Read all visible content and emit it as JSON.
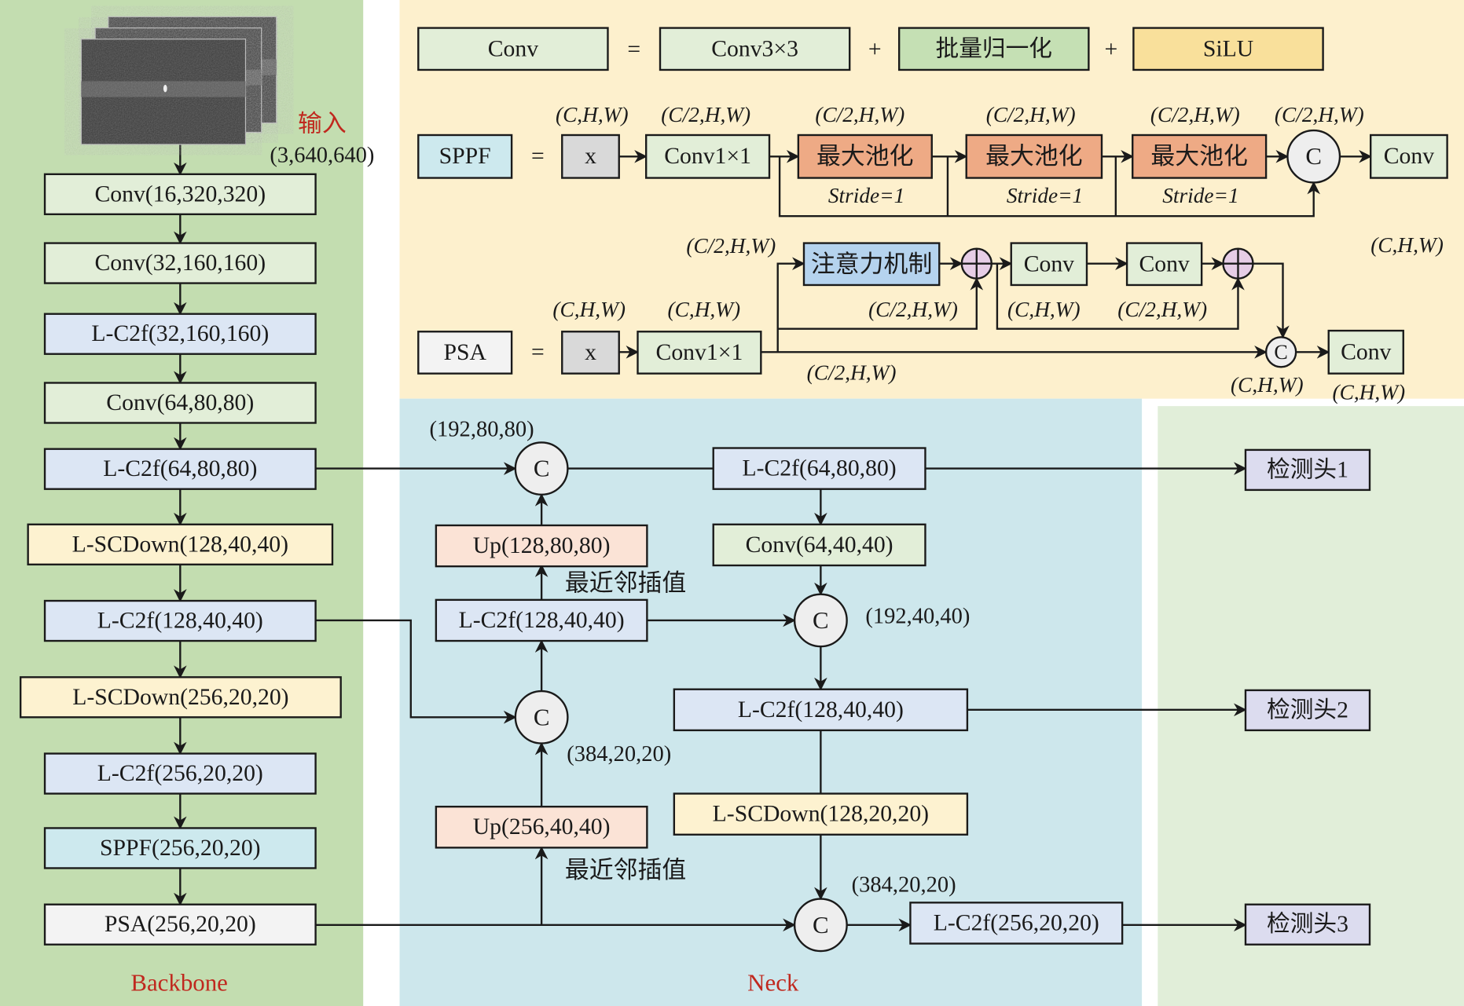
{
  "colors": {
    "backbone_bg": "#c3ddb0",
    "neck_bg": "#cde7ec",
    "module_bg": "#fdf0cd",
    "head_bg": "#e1eed9",
    "conv": "#e2eed8",
    "lc2f": "#dce6f4",
    "scdown": "#fdf2d0",
    "sppf": "#cde9ee",
    "psa": "#f3f3f3",
    "up": "#fbe3d6",
    "maxpool": "#eeaa85",
    "attention": "#b5d3ee",
    "add": "#e6cde6",
    "concat": "#eeeeee",
    "bn": "#c5e0b4",
    "silu": "#f9e09b",
    "x": "#d9d9d9",
    "head": "#dcdcef",
    "red_label": "#c0281e"
  },
  "backbone": {
    "title": "Backbone",
    "input_label": "输入",
    "input_shape": "(3,640,640)",
    "layers": [
      "Conv(16,320,320)",
      "Conv(32,160,160)",
      "L-C2f(32,160,160)",
      "Conv(64,80,80)",
      "L-C2f(64,80,80)",
      "L-SCDown(128,40,40)",
      "L-C2f(128,40,40)",
      "L-SCDown(256,20,20)",
      "L-C2f(256,20,20)",
      "SPPF(256,20,20)",
      "PSA(256,20,20)"
    ]
  },
  "neck": {
    "title": "Neck",
    "concat": "C",
    "up1": "Up(128,80,80)",
    "up2": "Up(256,40,40)",
    "nearest1": "最近邻插值",
    "nearest2": "最近邻插值",
    "lc2f_128_a": "L-C2f(128,40,40)",
    "lc2f_64": "L-C2f(64,80,80)",
    "conv_64": "Conv(64,40,40)",
    "lc2f_128_b": "L-C2f(128,40,40)",
    "scdown_128": "L-SCDown(128,20,20)",
    "lc2f_256": "L-C2f(256,20,20)",
    "shape_c1": "(192,80,80)",
    "shape_c2": "(384,20,20)",
    "shape_c3": "(192,40,40)",
    "shape_c4": "(384,20,20)"
  },
  "heads": [
    "检测头1",
    "检测头2",
    "检测头3"
  ],
  "modules": {
    "conv_def": {
      "name": "Conv",
      "eq": "=",
      "plus": "+",
      "parts": [
        "Conv3×3",
        "批量归一化",
        "SiLU"
      ]
    },
    "sppf_def": {
      "name": "SPPF",
      "eq": "=",
      "x": "x",
      "conv1": "Conv1×1",
      "maxpool": "最大池化",
      "stride": "Stride=1",
      "concat": "C",
      "conv_out": "Conv",
      "shapes": [
        "(C,H,W)",
        "(C/2,H,W)",
        "(C/2,H,W)",
        "(C/2,H,W)",
        "(C/2,H,W)",
        "(C/2,H,W)"
      ]
    },
    "psa_def": {
      "name": "PSA",
      "eq": "=",
      "x": "x",
      "conv1": "Conv1×1",
      "attention": "注意力机制",
      "conv": "Conv",
      "concat": "C",
      "shapes": [
        "(C/2,H,W)",
        "(C,H,W)",
        "(C,H,W)",
        "(C/2,H,W)",
        "(C,H,W)",
        "(C/2,H,W)",
        "(C/2,H,W)",
        "(C,H,W)",
        "(C,H,W)",
        "(C,H,W)"
      ]
    }
  }
}
